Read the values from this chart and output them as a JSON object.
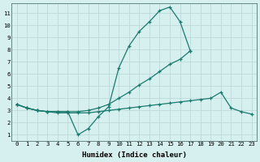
{
  "x_all": [
    0,
    1,
    2,
    3,
    4,
    5,
    6,
    7,
    8,
    9,
    10,
    11,
    12,
    13,
    14,
    15,
    16,
    17,
    18,
    19,
    20,
    21,
    22,
    23
  ],
  "line_peak": [
    3.5,
    3.2,
    3.0,
    2.9,
    2.9,
    2.9,
    1.0,
    1.5,
    2.5,
    3.3,
    6.5,
    8.3,
    9.5,
    10.3,
    11.2,
    11.5,
    10.3,
    7.9,
    null,
    null,
    null,
    null,
    null,
    null
  ],
  "line_rise": [
    3.5,
    3.2,
    3.0,
    2.9,
    2.9,
    2.9,
    2.9,
    3.0,
    3.2,
    3.5,
    4.0,
    4.5,
    5.1,
    5.6,
    6.2,
    6.8,
    7.2,
    7.9,
    null,
    null,
    null,
    null,
    null,
    null
  ],
  "line_flat": [
    3.5,
    3.2,
    3.0,
    2.9,
    2.8,
    2.8,
    2.8,
    2.8,
    2.9,
    3.0,
    3.1,
    3.2,
    3.3,
    3.4,
    3.5,
    3.6,
    3.7,
    3.8,
    3.9,
    4.0,
    4.5,
    3.2,
    2.9,
    2.7
  ],
  "color": "#1a7a6e",
  "bg_color": "#d6f0ef",
  "grid_color": "#b8d4d4",
  "xlabel": "Humidex (Indice chaleur)",
  "ylim": [
    0.5,
    11.8
  ],
  "xlim": [
    -0.5,
    23.5
  ],
  "yticks": [
    1,
    2,
    3,
    4,
    5,
    6,
    7,
    8,
    9,
    10,
    11
  ],
  "xticks": [
    0,
    1,
    2,
    3,
    4,
    5,
    6,
    7,
    8,
    9,
    10,
    11,
    12,
    13,
    14,
    15,
    16,
    17,
    18,
    19,
    20,
    21,
    22,
    23
  ]
}
